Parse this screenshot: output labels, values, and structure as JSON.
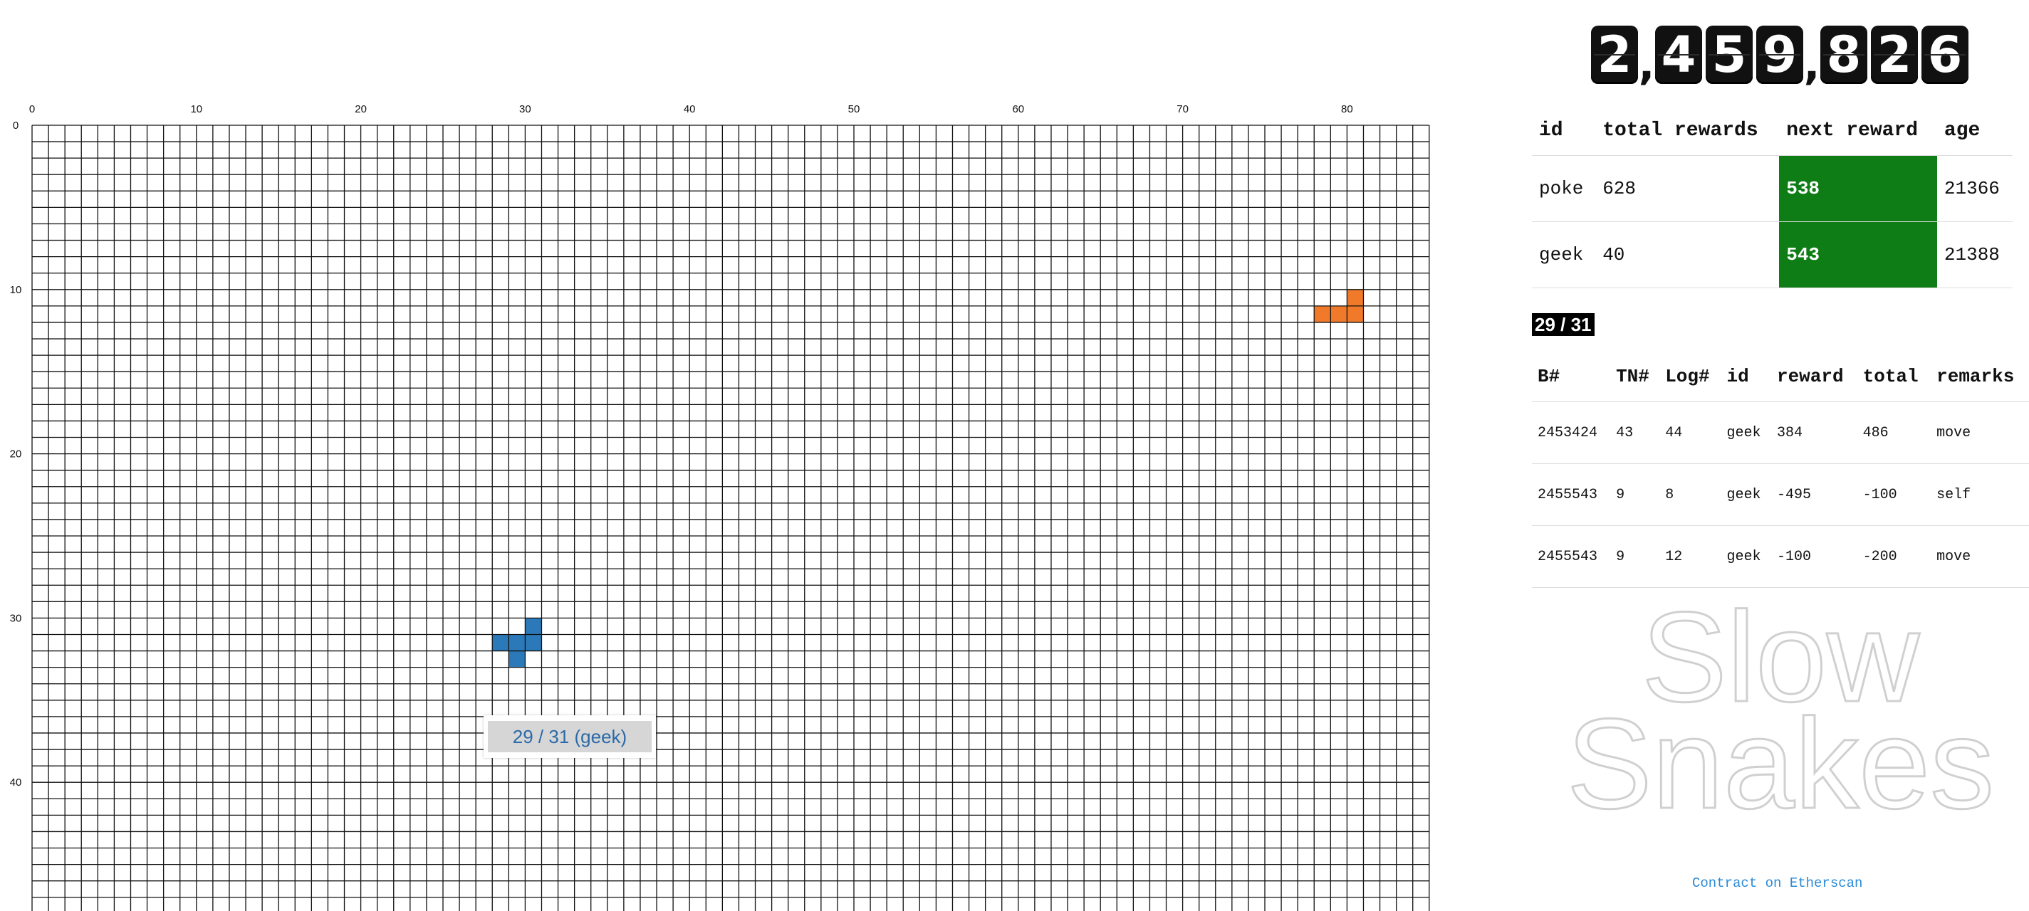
{
  "grid": {
    "cols": 85,
    "rows": 48,
    "x_ticks": [
      0,
      10,
      20,
      30,
      40,
      50,
      60,
      70,
      80
    ],
    "y_ticks": [
      0,
      10,
      20,
      30,
      40
    ],
    "snakes": [
      {
        "owner": "poke",
        "color": "#f07a2a",
        "cells": [
          [
            78,
            11
          ],
          [
            79,
            11
          ],
          [
            80,
            11
          ],
          [
            80,
            10
          ]
        ]
      },
      {
        "owner": "geek",
        "color": "#2b79b8",
        "cells": [
          [
            28,
            31
          ],
          [
            29,
            31
          ],
          [
            30,
            31
          ],
          [
            30,
            30
          ],
          [
            29,
            32
          ]
        ]
      }
    ]
  },
  "tooltip": {
    "text": "29 / 31 (geek)"
  },
  "counter": {
    "digits": [
      "2",
      ",",
      "4",
      "5",
      "9",
      ",",
      "8",
      "2",
      "6"
    ]
  },
  "players_table": {
    "headers": [
      "id",
      "total rewards",
      "next reward",
      "age"
    ],
    "rows": [
      {
        "id": "poke",
        "total": "628",
        "next": "538",
        "age": "21366"
      },
      {
        "id": "geek",
        "total": "40",
        "next": "543",
        "age": "21388"
      }
    ]
  },
  "log": {
    "badge": "29 / 31",
    "headers": [
      "B#",
      "TN#",
      "Log#",
      "id",
      "reward",
      "total",
      "remarks"
    ],
    "rows": [
      {
        "b": "2453424",
        "tn": "43",
        "log": "44",
        "id": "geek",
        "reward": "384",
        "total": "486",
        "remarks": "move"
      },
      {
        "b": "2455543",
        "tn": "9",
        "log": "8",
        "id": "geek",
        "reward": "-495",
        "total": "-100",
        "remarks": "self"
      },
      {
        "b": "2455543",
        "tn": "9",
        "log": "12",
        "id": "geek",
        "reward": "-100",
        "total": "-200",
        "remarks": "move"
      }
    ]
  },
  "logo": {
    "line1": "Slow",
    "line2": "Snakes"
  },
  "footer": {
    "link_text": "Contract on Etherscan"
  },
  "colors": {
    "green": "#0e7d15",
    "grid_line": "#111111",
    "link": "#2a8ad6"
  }
}
